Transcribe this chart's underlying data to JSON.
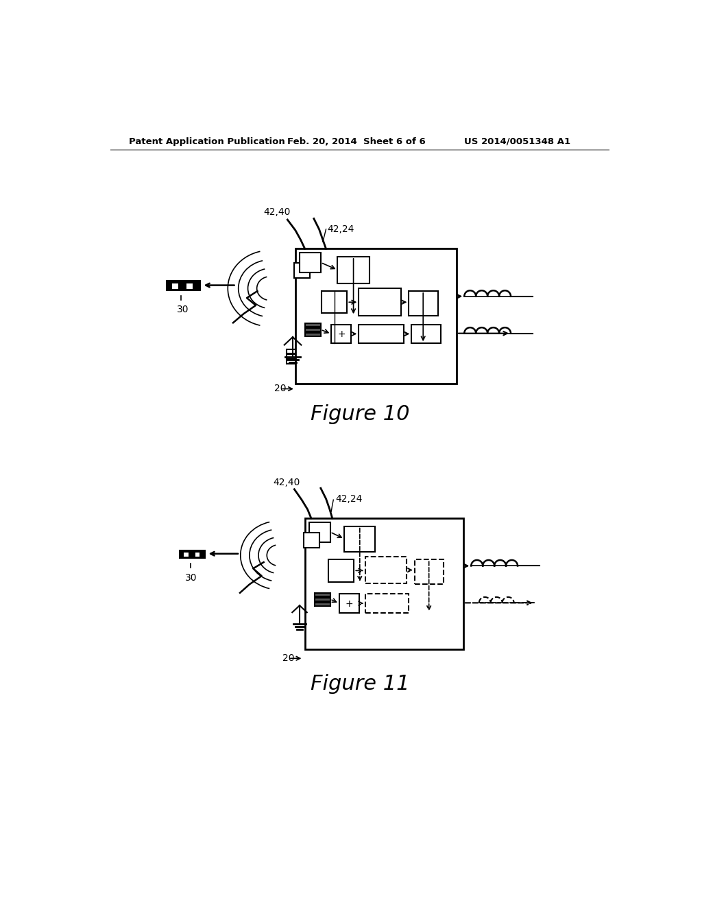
{
  "background_color": "#ffffff",
  "header_left": "Patent Application Publication",
  "header_mid": "Feb. 20, 2014  Sheet 6 of 6",
  "header_right": "US 2014/0051348 A1",
  "fig10_caption": "Figure 10",
  "fig11_caption": "Figure 11",
  "label_42_40_f10": "42,40",
  "label_42_24_f10": "42,24",
  "label_30_f10": "30",
  "label_20_f10": "20",
  "label_42_40_f11": "42,40",
  "label_42_24_f11": "42,24",
  "label_30_f11": "30",
  "label_20_f11": "20"
}
